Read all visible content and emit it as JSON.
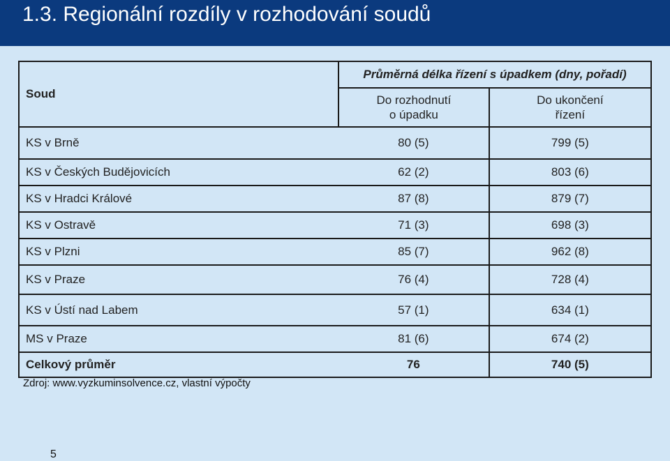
{
  "title": "1.3. Regionální rozdíly v rozhodování soudů",
  "table": {
    "col_court": "Soud",
    "group_header": "Průměrná délka řízení s úpadkem (dny, pořadí)",
    "col2_line1": "Do rozhodnutí",
    "col2_line2": "o úpadku",
    "col3_line1": "Do ukončení",
    "col3_line2": "řízení",
    "rows": [
      {
        "court": "KS v Brně",
        "decision": "80 (5)",
        "end": "799 (5)"
      },
      {
        "court": "KS v Českých Budějovicích",
        "decision": "62 (2)",
        "end": "803 (6)"
      },
      {
        "court": "KS v Hradci Králové",
        "decision": "87 (8)",
        "end": "879 (7)"
      },
      {
        "court": "KS v Ostravě",
        "decision": "71 (3)",
        "end": "698 (3)"
      },
      {
        "court": "KS v Plzni",
        "decision": "85 (7)",
        "end": "962 (8)"
      },
      {
        "court": "KS v Praze",
        "decision": "76 (4)",
        "end": "728 (4)"
      },
      {
        "court": "KS v Ústí nad Labem",
        "decision": "57 (1)",
        "end": "634 (1)"
      },
      {
        "court": "MS v Praze",
        "decision": "81 (6)",
        "end": "674 (2)"
      }
    ],
    "total": {
      "court": "Celkový průměr",
      "decision": "76",
      "end": "740 (5)"
    }
  },
  "source": "Zdroj: www.vyzkuminsolvence.cz, vlastní výpočty",
  "page_number": "5"
}
